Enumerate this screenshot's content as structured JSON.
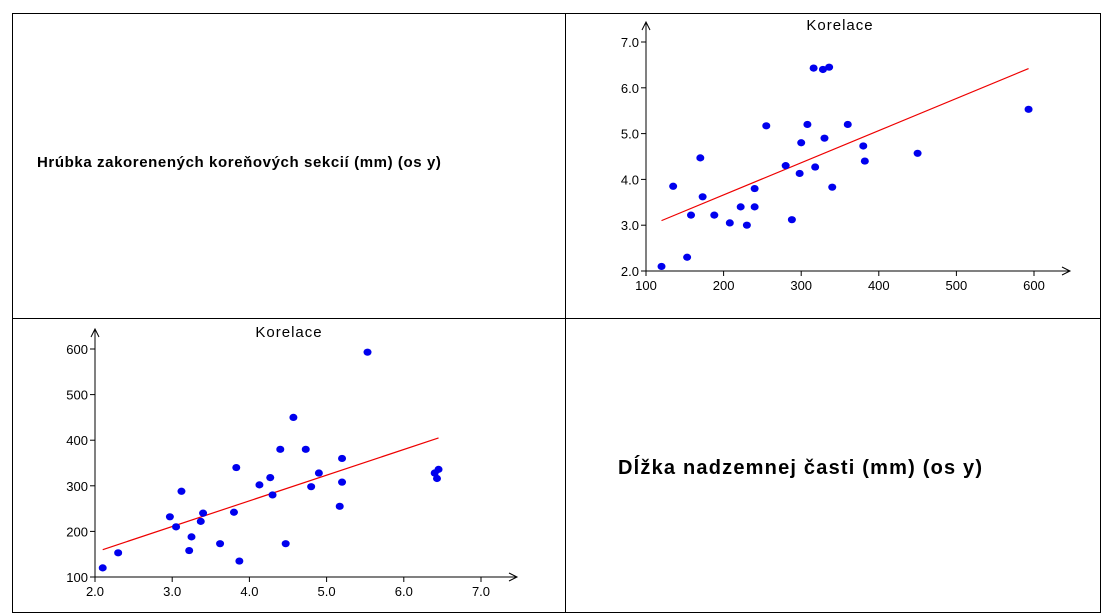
{
  "matrix": {
    "diag_label_1": "Hrúbka zakorenených koreňových sekcií  (mm) (os y)",
    "diag_label_2": "Dĺžka nadzemnej časti (mm) (os y)"
  },
  "colors": {
    "points": "#0000ee",
    "fit_line": "#ee0000",
    "axes": "#000000"
  },
  "chart_data": [
    {
      "type": "scatter",
      "title": "Korelace",
      "xlabel": "",
      "ylabel": "",
      "xlim": [
        100,
        600
      ],
      "ylim": [
        2.0,
        7.0
      ],
      "xticks": [
        "100",
        "200",
        "300",
        "400",
        "500",
        "600"
      ],
      "yticks": [
        "2.0",
        "3.0",
        "4.0",
        "5.0",
        "6.0",
        "7.0"
      ],
      "grid": false,
      "x": [
        120,
        135,
        153,
        158,
        170,
        173,
        188,
        208,
        222,
        230,
        240,
        240,
        255,
        280,
        288,
        298,
        300,
        308,
        316,
        318,
        328,
        330,
        336,
        340,
        360,
        380,
        382,
        450,
        593
      ],
      "y": [
        2.1,
        3.85,
        2.3,
        3.22,
        4.47,
        3.62,
        3.22,
        3.05,
        3.4,
        3.0,
        3.8,
        3.4,
        5.17,
        4.3,
        3.12,
        4.13,
        4.8,
        5.2,
        6.43,
        4.27,
        6.4,
        4.9,
        6.45,
        3.83,
        5.2,
        4.73,
        4.4,
        4.57,
        5.53
      ],
      "fit": {
        "x": [
          120,
          593
        ],
        "y": [
          3.1,
          6.42
        ]
      }
    },
    {
      "type": "scatter",
      "title": "Korelace",
      "xlabel": "",
      "ylabel": "",
      "xlim": [
        2.0,
        7.0
      ],
      "ylim": [
        100,
        600
      ],
      "xticks": [
        "2.0",
        "3.0",
        "4.0",
        "5.0",
        "6.0",
        "7.0"
      ],
      "yticks": [
        "100",
        "200",
        "300",
        "400",
        "500",
        "600"
      ],
      "grid": false,
      "x": [
        2.1,
        2.3,
        2.97,
        3.05,
        3.12,
        3.22,
        3.25,
        3.37,
        3.4,
        3.62,
        3.8,
        3.83,
        3.87,
        4.13,
        4.27,
        4.3,
        4.4,
        4.47,
        4.57,
        4.73,
        4.8,
        4.9,
        5.17,
        5.2,
        5.2,
        5.53,
        6.4,
        6.43,
        6.45
      ],
      "y": [
        120,
        153,
        232,
        210,
        288,
        158,
        188,
        222,
        240,
        173,
        242,
        340,
        135,
        302,
        318,
        280,
        380,
        173,
        450,
        380,
        298,
        328,
        255,
        308,
        360,
        593,
        328,
        316,
        336
      ],
      "fit": {
        "x": [
          2.1,
          6.45
        ],
        "y": [
          160,
          405
        ]
      }
    }
  ]
}
